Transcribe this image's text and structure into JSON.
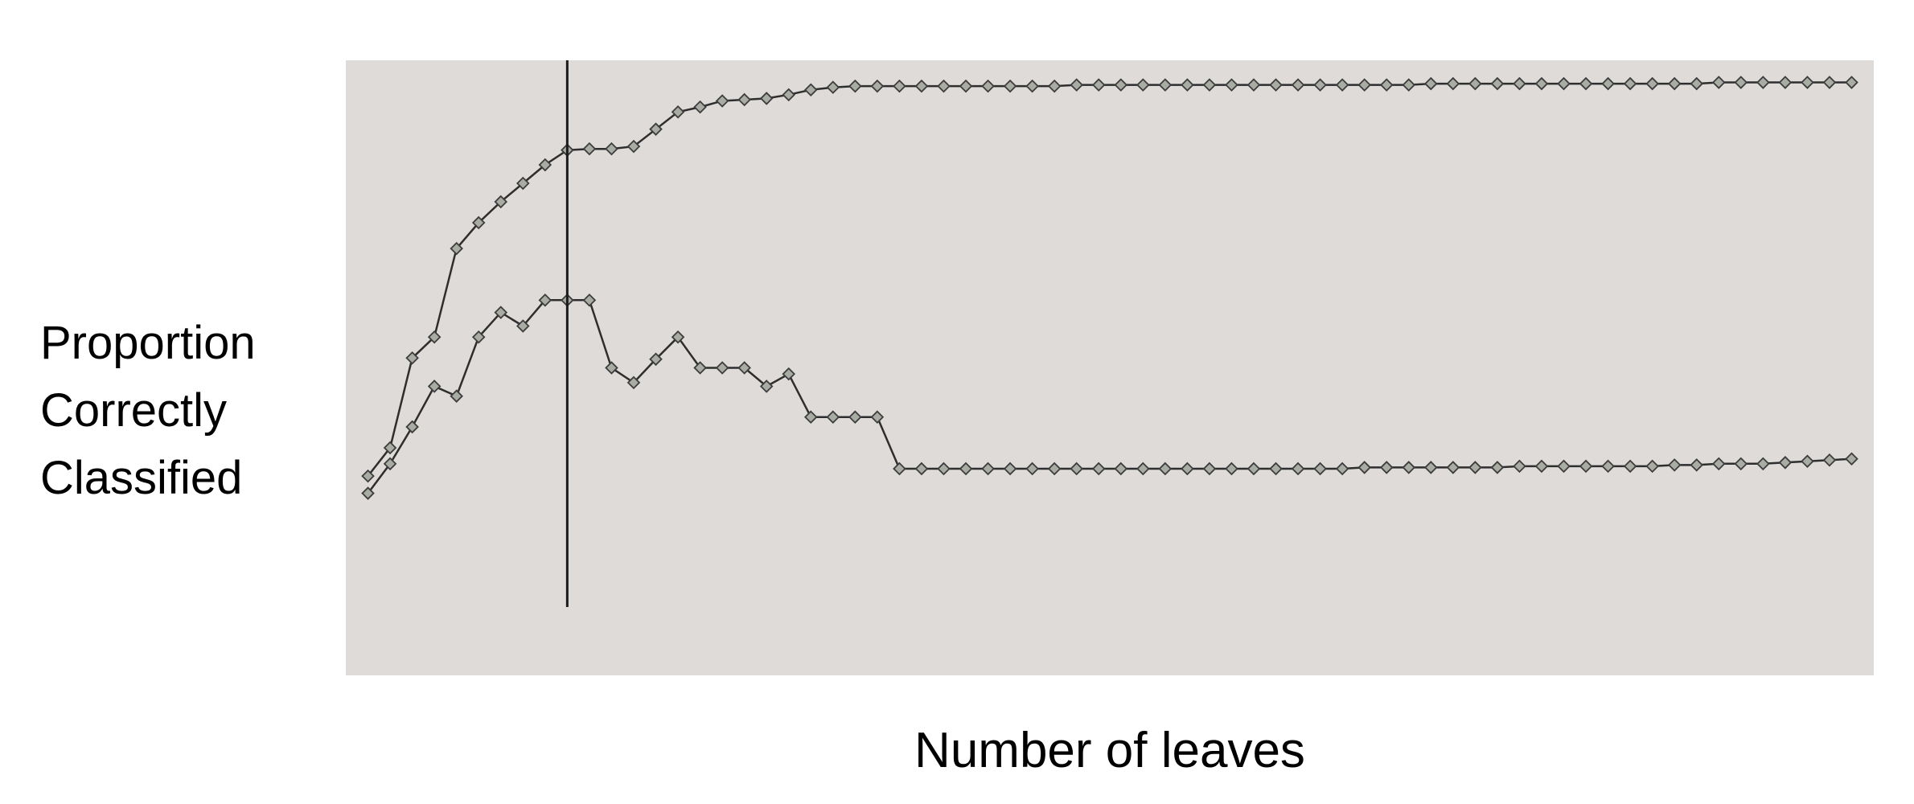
{
  "chart_data": {
    "type": "line",
    "title": "",
    "xlabel": "Number of leaves",
    "ylabel": "Proportion\nCorrectly\nClassified",
    "grid": false,
    "legend": "none",
    "marker": "diamond",
    "colors": {
      "background": "#dedbd9",
      "line": "#2e2e2e",
      "marker_fill": "#a9aca3",
      "marker_edge": "#3d3d3d",
      "vline": "#1b1b1b"
    },
    "x": [
      1,
      2,
      3,
      4,
      5,
      6,
      7,
      8,
      9,
      10,
      11,
      12,
      13,
      14,
      15,
      16,
      17,
      18,
      19,
      20,
      21,
      22,
      23,
      24,
      25,
      26,
      27,
      28,
      29,
      30,
      31,
      32,
      33,
      34,
      35,
      36,
      37,
      38,
      39,
      40,
      41,
      42,
      43,
      44,
      45,
      46,
      47,
      48,
      49,
      50,
      51,
      52,
      53,
      54,
      55,
      56,
      57,
      58,
      59,
      60,
      61,
      62,
      63,
      64,
      65,
      66,
      67,
      68
    ],
    "xlim": [
      0,
      69
    ],
    "ylim": [
      0.5,
      1.0
    ],
    "vline_x": 10,
    "series": [
      {
        "values": [
          0.662,
          0.685,
          0.758,
          0.775,
          0.847,
          0.868,
          0.885,
          0.9,
          0.915,
          0.927,
          0.928,
          0.928,
          0.93,
          0.944,
          0.958,
          0.962,
          0.967,
          0.968,
          0.969,
          0.972,
          0.976,
          0.978,
          0.979,
          0.979,
          0.979,
          0.979,
          0.979,
          0.979,
          0.979,
          0.979,
          0.979,
          0.979,
          0.98,
          0.98,
          0.98,
          0.98,
          0.98,
          0.98,
          0.98,
          0.98,
          0.98,
          0.98,
          0.98,
          0.98,
          0.98,
          0.98,
          0.98,
          0.98,
          0.981,
          0.981,
          0.981,
          0.981,
          0.981,
          0.981,
          0.981,
          0.981,
          0.981,
          0.981,
          0.981,
          0.981,
          0.981,
          0.982,
          0.982,
          0.982,
          0.982,
          0.982,
          0.982,
          0.982
        ]
      },
      {
        "values": [
          0.648,
          0.672,
          0.702,
          0.735,
          0.727,
          0.775,
          0.795,
          0.784,
          0.805,
          0.805,
          0.805,
          0.75,
          0.738,
          0.757,
          0.775,
          0.75,
          0.75,
          0.75,
          0.735,
          0.745,
          0.71,
          0.71,
          0.71,
          0.71,
          0.668,
          0.668,
          0.668,
          0.668,
          0.668,
          0.668,
          0.668,
          0.668,
          0.668,
          0.668,
          0.668,
          0.668,
          0.668,
          0.668,
          0.668,
          0.668,
          0.668,
          0.668,
          0.668,
          0.668,
          0.668,
          0.669,
          0.669,
          0.669,
          0.669,
          0.669,
          0.669,
          0.669,
          0.67,
          0.67,
          0.67,
          0.67,
          0.67,
          0.67,
          0.67,
          0.671,
          0.671,
          0.672,
          0.672,
          0.672,
          0.673,
          0.674,
          0.675,
          0.676
        ]
      }
    ]
  }
}
